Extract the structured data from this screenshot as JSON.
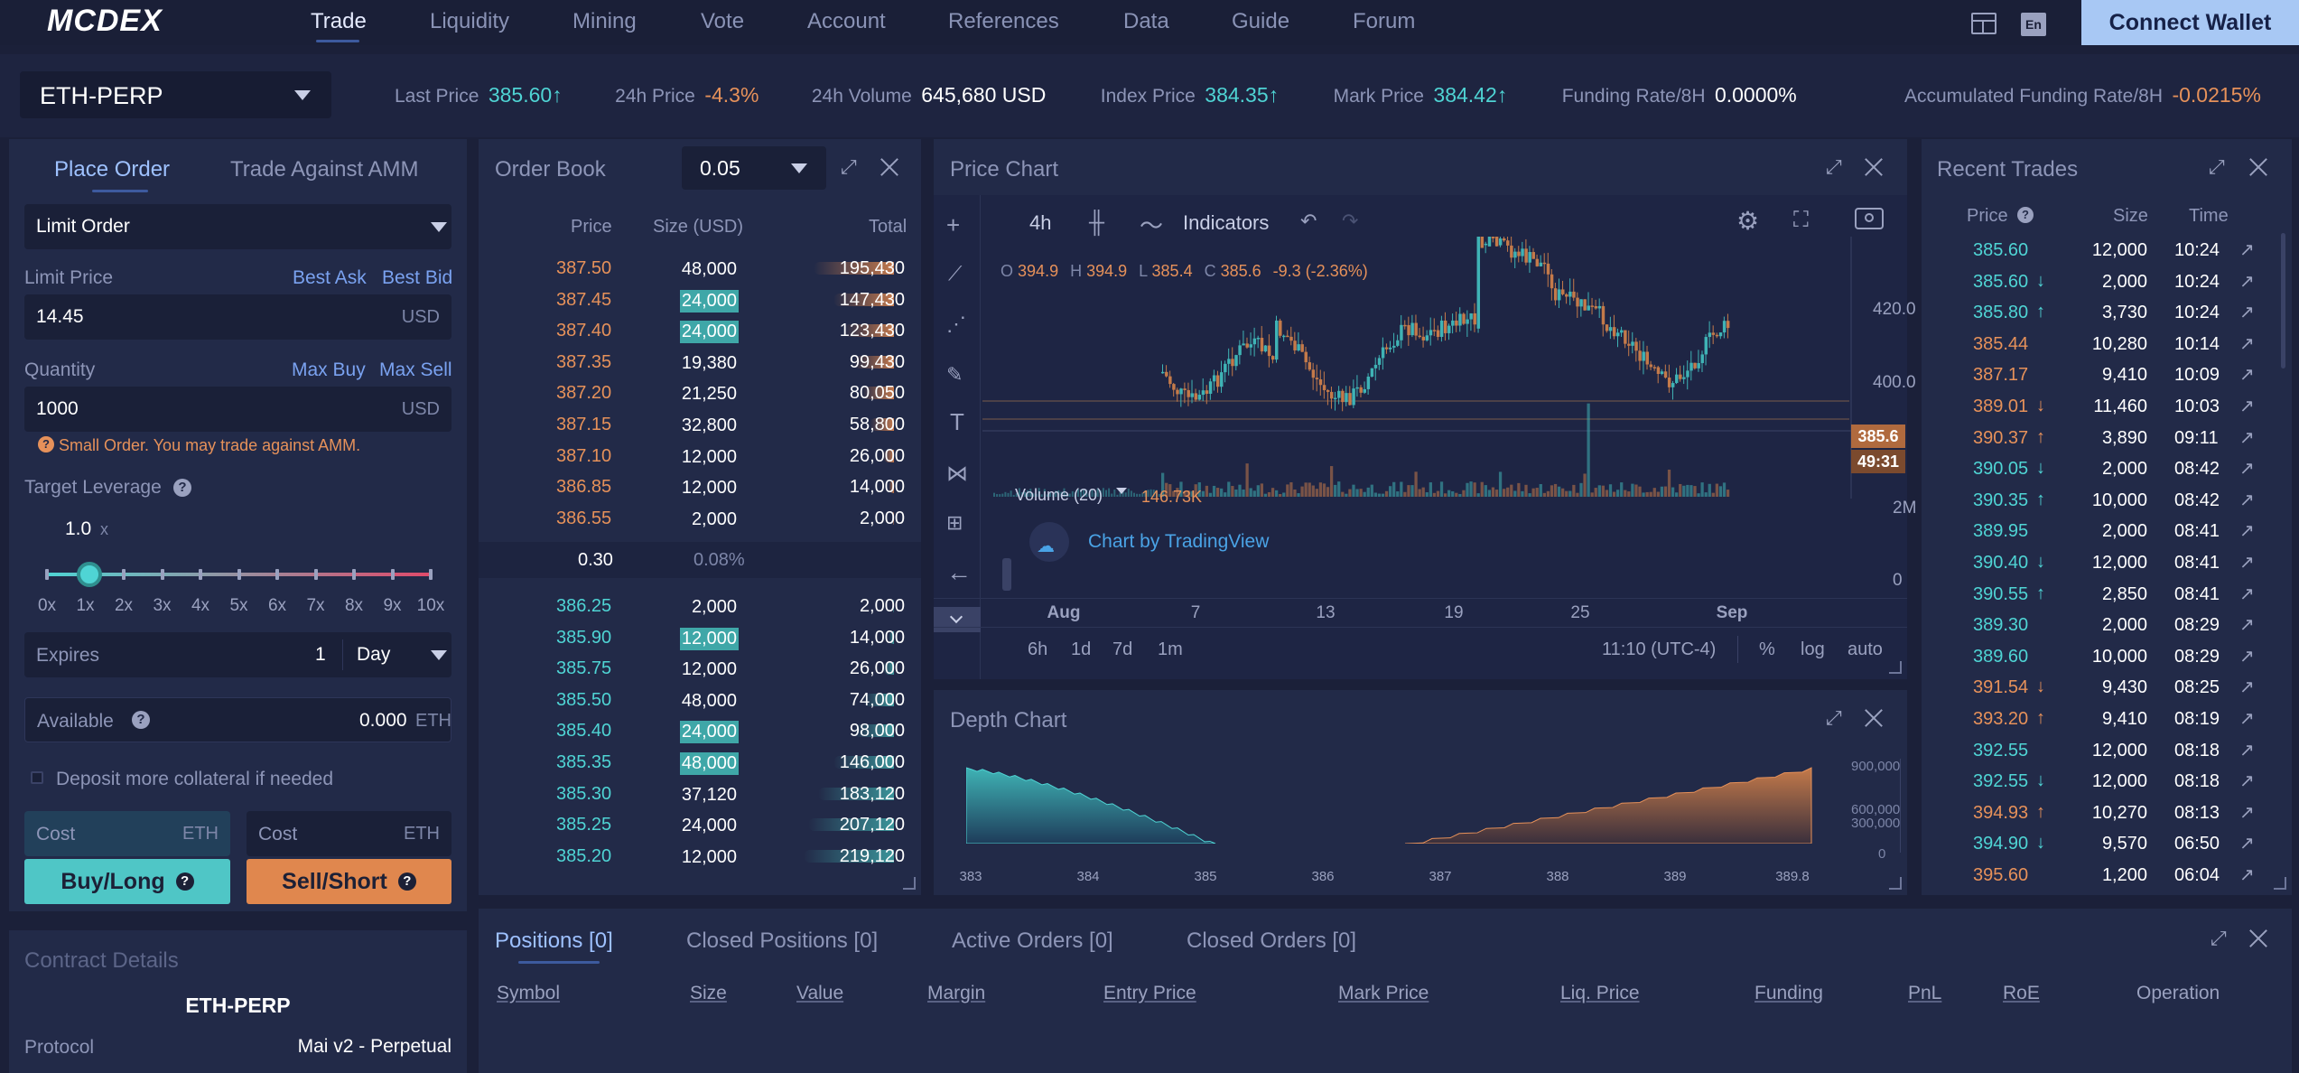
{
  "topnav": {
    "logo": "MCDEX",
    "items": [
      "Trade",
      "Liquidity",
      "Mining",
      "Vote",
      "Account",
      "References",
      "Data",
      "Guide",
      "Forum"
    ],
    "lang": "En",
    "connect": "Connect Wallet"
  },
  "ticker": {
    "market": "ETH-PERP",
    "last_price_label": "Last Price",
    "last_price": "385.60↑",
    "change_label": "24h Price",
    "change": "-4.3%",
    "volume_label": "24h Volume",
    "volume": "645,680 USD",
    "index_label": "Index Price",
    "index": "384.35↑",
    "mark_label": "Mark Price",
    "mark": "384.42↑",
    "funding_label": "Funding Rate/8H",
    "funding": "0.0000%",
    "acc_funding_label": "Accumulated Funding Rate/8H",
    "acc_funding": "-0.0215%"
  },
  "order_form": {
    "tab_place": "Place Order",
    "tab_amm": "Trade Against AMM",
    "order_type": "Limit Order",
    "limit_price_label": "Limit Price",
    "best_ask": "Best Ask",
    "best_bid": "Best Bid",
    "limit_price": "14.45",
    "limit_unit": "USD",
    "quantity_label": "Quantity",
    "max_buy": "Max Buy",
    "max_sell": "Max Sell",
    "quantity": "1000",
    "quantity_unit": "USD",
    "warning": "Small Order. You may trade against AMM.",
    "leverage_label": "Target Leverage",
    "leverage_value": "1.0",
    "leverage_x": "x",
    "leverage_level": 0.0,
    "leverage_ticks": [
      "0x",
      "1x",
      "2x",
      "3x",
      "4x",
      "5x",
      "6x",
      "7x",
      "8x",
      "9x",
      "10x"
    ],
    "expires_label": "Expires",
    "expires_value": "1",
    "expires_unit": "Day",
    "available_label": "Available",
    "available_value": "0.000",
    "available_unit": "ETH",
    "deposit_label": "Deposit more collateral if needed",
    "cost_label": "Cost",
    "cost_unit": "ETH",
    "buy": "Buy/Long",
    "sell": "Sell/Short"
  },
  "contract": {
    "title": "Contract Details",
    "name": "ETH-PERP",
    "protocol_label": "Protocol",
    "protocol_value": "Mai v2 - Perpetual"
  },
  "orderbook": {
    "title": "Order Book",
    "step": "0.05",
    "headers": [
      "Price",
      "Size (USD)",
      "Total"
    ],
    "asks": [
      {
        "price": "387.50",
        "size": "48,000",
        "total": "195,430",
        "highlight": false,
        "depth": 0.89
      },
      {
        "price": "387.45",
        "size": "24,000",
        "total": "147,430",
        "highlight": true,
        "depth": 0.67
      },
      {
        "price": "387.40",
        "size": "24,000",
        "total": "123,430",
        "highlight": true,
        "depth": 0.56
      },
      {
        "price": "387.35",
        "size": "19,380",
        "total": "99,430",
        "highlight": false,
        "depth": 0.45
      },
      {
        "price": "387.20",
        "size": "21,250",
        "total": "80,050",
        "highlight": false,
        "depth": 0.36
      },
      {
        "price": "387.15",
        "size": "32,800",
        "total": "58,800",
        "highlight": false,
        "depth": 0.27
      },
      {
        "price": "387.10",
        "size": "12,000",
        "total": "26,000",
        "highlight": false,
        "depth": 0.12
      },
      {
        "price": "386.85",
        "size": "12,000",
        "total": "14,000",
        "highlight": false,
        "depth": 0.06
      },
      {
        "price": "386.55",
        "size": "2,000",
        "total": "2,000",
        "highlight": false,
        "depth": 0.01
      }
    ],
    "spread": "0.30",
    "spread_pct": "0.08%",
    "bids": [
      {
        "price": "386.25",
        "size": "2,000",
        "total": "2,000",
        "highlight": false,
        "depth": 0.01
      },
      {
        "price": "385.90",
        "size": "12,000",
        "total": "14,000",
        "highlight": true,
        "depth": 0.06
      },
      {
        "price": "385.75",
        "size": "12,000",
        "total": "26,000",
        "highlight": false,
        "depth": 0.12
      },
      {
        "price": "385.50",
        "size": "48,000",
        "total": "74,000",
        "highlight": false,
        "depth": 0.34
      },
      {
        "price": "385.40",
        "size": "24,000",
        "total": "98,000",
        "highlight": true,
        "depth": 0.45
      },
      {
        "price": "385.35",
        "size": "48,000",
        "total": "146,000",
        "highlight": true,
        "depth": 0.67
      },
      {
        "price": "385.30",
        "size": "37,120",
        "total": "183,120",
        "highlight": false,
        "depth": 0.84
      },
      {
        "price": "385.25",
        "size": "24,000",
        "total": "207,120",
        "highlight": false,
        "depth": 0.95
      },
      {
        "price": "385.20",
        "size": "12,000",
        "total": "219,120",
        "highlight": false,
        "depth": 1.0
      }
    ]
  },
  "price_chart": {
    "title": "Price Chart",
    "interval": "4h",
    "indicators": "Indicators",
    "ohlc": {
      "o_label": "O",
      "o": "394.9",
      "h_label": "H",
      "h": "394.9",
      "l_label": "L",
      "l": "385.4",
      "c_label": "C",
      "c": "385.6",
      "chg": "-9.3 (-2.36%)"
    },
    "price_ticks": [
      "420.0",
      "400.0"
    ],
    "last_tag": "385.6",
    "countdown_tag": "49:31",
    "volume_label": "Volume (20)",
    "volume_value": "146.73K",
    "vol_ticks": [
      "2M",
      "0"
    ],
    "attribution": "Chart by TradingView",
    "x_ticks": [
      "Aug",
      "7",
      "13",
      "19",
      "25",
      "Sep"
    ],
    "ranges": [
      "6h",
      "1d",
      "7d",
      "1m"
    ],
    "time": "11:10 (UTC-4)",
    "pct": "%",
    "log": "log",
    "auto": "auto"
  },
  "depth_chart": {
    "title": "Depth Chart",
    "y_ticks": [
      "900,000",
      "600,000",
      "300,000",
      "0"
    ],
    "x_ticks": [
      "383",
      "384",
      "385",
      "386",
      "387",
      "388",
      "389",
      "389.8"
    ]
  },
  "recent_trades": {
    "title": "Recent Trades",
    "headers": [
      "Price",
      "Size",
      "Time"
    ],
    "rows": [
      {
        "price": "385.60",
        "arrow": "",
        "side": "buy",
        "size": "12,000",
        "time": "10:24"
      },
      {
        "price": "385.60",
        "arrow": "↓",
        "side": "buy",
        "size": "2,000",
        "time": "10:24"
      },
      {
        "price": "385.80",
        "arrow": "↑",
        "side": "buy",
        "size": "3,730",
        "time": "10:24"
      },
      {
        "price": "385.44",
        "arrow": "",
        "side": "sell",
        "size": "10,280",
        "time": "10:14"
      },
      {
        "price": "387.17",
        "arrow": "",
        "side": "sell",
        "size": "9,410",
        "time": "10:09"
      },
      {
        "price": "389.01",
        "arrow": "↓",
        "side": "sell",
        "size": "11,460",
        "time": "10:03"
      },
      {
        "price": "390.37",
        "arrow": "↑",
        "side": "sell",
        "size": "3,890",
        "time": "09:11"
      },
      {
        "price": "390.05",
        "arrow": "↓",
        "side": "buy",
        "size": "2,000",
        "time": "08:42"
      },
      {
        "price": "390.35",
        "arrow": "↑",
        "side": "buy",
        "size": "10,000",
        "time": "08:42"
      },
      {
        "price": "389.95",
        "arrow": "",
        "side": "buy",
        "size": "2,000",
        "time": "08:41"
      },
      {
        "price": "390.40",
        "arrow": "↓",
        "side": "buy",
        "size": "12,000",
        "time": "08:41"
      },
      {
        "price": "390.55",
        "arrow": "↑",
        "side": "buy",
        "size": "2,850",
        "time": "08:41"
      },
      {
        "price": "389.30",
        "arrow": "",
        "side": "buy",
        "size": "2,000",
        "time": "08:29"
      },
      {
        "price": "389.60",
        "arrow": "",
        "side": "buy",
        "size": "10,000",
        "time": "08:29"
      },
      {
        "price": "391.54",
        "arrow": "↓",
        "side": "sell",
        "size": "9,430",
        "time": "08:25"
      },
      {
        "price": "393.20",
        "arrow": "↑",
        "side": "sell",
        "size": "9,410",
        "time": "08:19"
      },
      {
        "price": "392.55",
        "arrow": "",
        "side": "buy",
        "size": "12,000",
        "time": "08:18"
      },
      {
        "price": "392.55",
        "arrow": "↓",
        "side": "buy",
        "size": "12,000",
        "time": "08:18"
      },
      {
        "price": "394.93",
        "arrow": "↑",
        "side": "sell",
        "size": "10,270",
        "time": "08:13"
      },
      {
        "price": "394.90",
        "arrow": "↓",
        "side": "buy",
        "size": "9,570",
        "time": "06:50"
      },
      {
        "price": "395.60",
        "arrow": "",
        "side": "sell",
        "size": "1,200",
        "time": "06:04"
      }
    ]
  },
  "positions": {
    "tabs": [
      "Positions [0]",
      "Closed Positions [0]",
      "Active Orders [0]",
      "Closed Orders [0]"
    ],
    "columns": [
      "Symbol",
      "Size",
      "Value",
      "Margin",
      "Entry Price",
      "Mark Price",
      "Liq. Price",
      "Funding",
      "PnL",
      "RoE",
      "Operation"
    ]
  },
  "colors": {
    "bg": "#1b2039",
    "panel": "#222a48",
    "buy": "#4fd4d4",
    "sell": "#e6915a",
    "accent": "#a8c8f4"
  }
}
